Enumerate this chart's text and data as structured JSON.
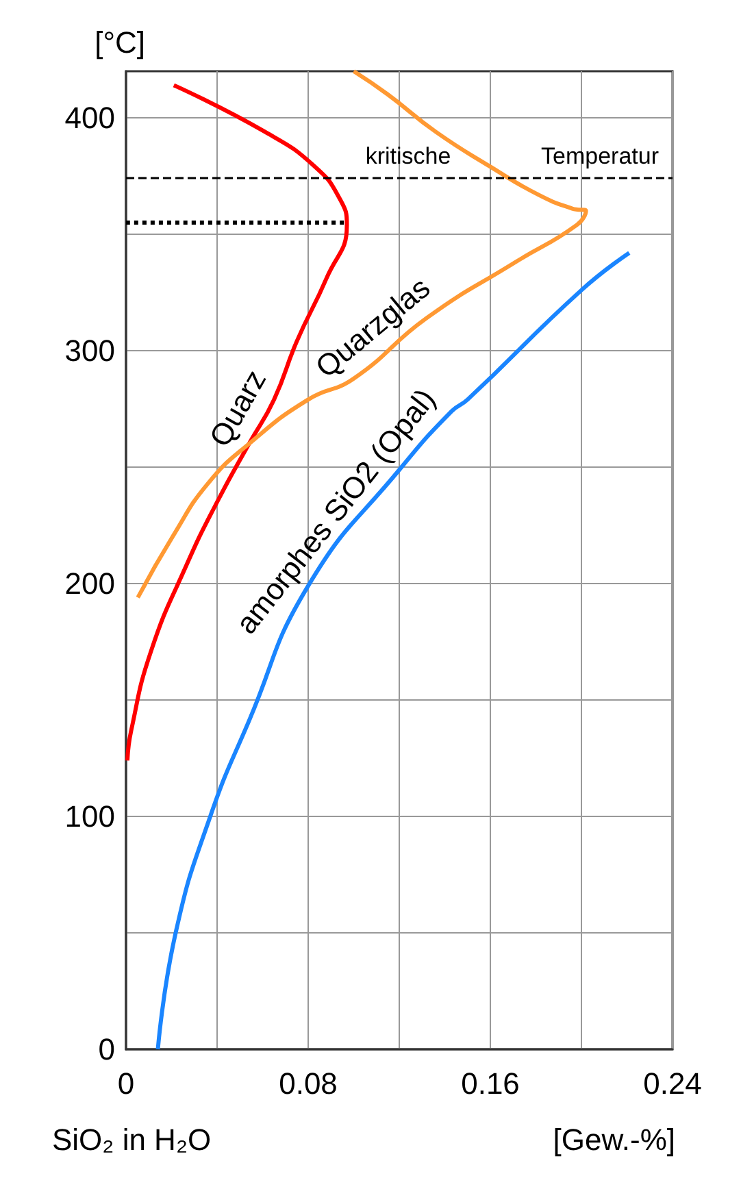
{
  "chart_data": {
    "type": "line",
    "xlabel": "SiO₂ in H₂O",
    "ylabel": "[°C]",
    "xlim": [
      0,
      0.24
    ],
    "xticks": [
      0,
      {
        "value": 0.04,
        "label": null
      },
      0.08,
      {
        "value": 0.12,
        "label": null
      },
      0.16,
      {
        "value": 0.2,
        "label": null
      },
      0.24
    ],
    "ylim": [
      0,
      420
    ],
    "yticks": [
      0,
      {
        "value": 50,
        "label": null
      },
      100,
      {
        "value": 150,
        "label": null
      },
      200,
      {
        "value": 250,
        "label": null
      },
      300,
      {
        "value": 350,
        "label": null
      },
      400
    ],
    "grid": true,
    "legend": false,
    "marker": "none",
    "series": [
      {
        "name": "Quarz",
        "color": "#ff0000",
        "x": [
          0.0006,
          0.0023,
          0.011,
          0.0266,
          0.04,
          0.054,
          0.065,
          0.075,
          0.088,
          0.097,
          0.094,
          0.083,
          0.061,
          0.021
        ],
        "values": [
          124,
          137,
          171,
          208,
          235,
          260,
          279,
          304,
          331,
          354,
          365,
          379,
          394,
          414
        ]
      },
      {
        "name": "Quarzglas",
        "color": "#ff9933",
        "x": [
          0.0052,
          0.021,
          0.036,
          0.054,
          0.08,
          0.1,
          0.132,
          0.171,
          0.198,
          0.202,
          0.196,
          0.181,
          0.16,
          0.136,
          0.115,
          0.1
        ],
        "values": [
          194,
          221,
          243,
          260,
          279,
          288,
          314,
          338,
          354,
          360,
          361,
          367,
          379,
          394,
          410,
          420
        ]
      },
      {
        "name": "amorphes SiO2 (Opal)",
        "color": "#1a85ff",
        "x": [
          0.014,
          0.0218,
          0.037,
          0.054,
          0.08,
          0.121,
          0.143,
          0.15,
          0.2,
          0.221
        ],
        "values": [
          0,
          50,
          100,
          141,
          199,
          250,
          274,
          279,
          326,
          342
        ]
      },
      {
        "type": "line",
        "color": "#000000",
        "line_style": "dotted",
        "x": [
          0,
          0.097
        ],
        "values": [
          355,
          355
        ]
      }
    ],
    "ref_lines": [
      {
        "axis": "y",
        "value": 374,
        "line_style": "dashed",
        "color": "#000000"
      }
    ],
    "annotations": [
      "kritische",
      "Temperatur",
      "[Gew.-%]"
    ]
  }
}
